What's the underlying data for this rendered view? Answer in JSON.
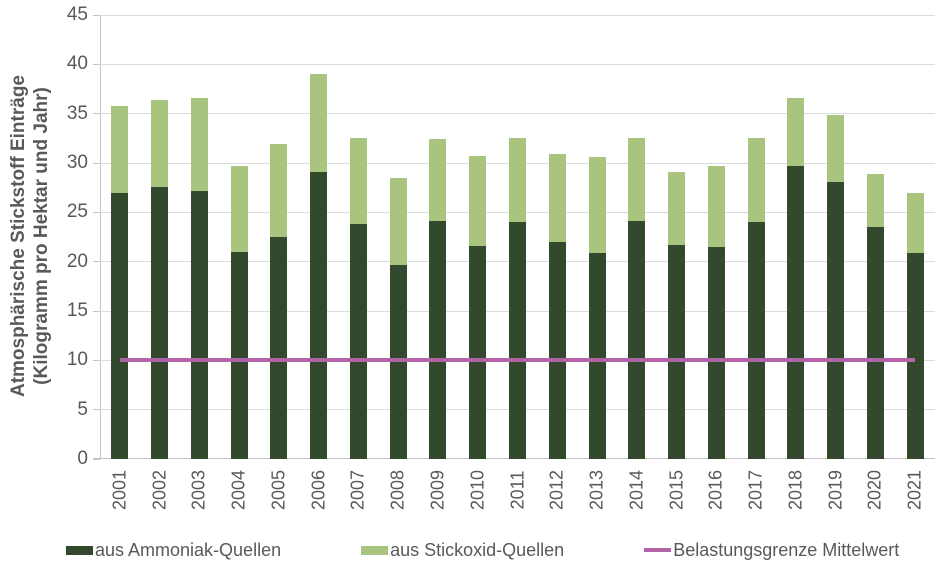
{
  "chart_data": {
    "type": "bar",
    "stacked": true,
    "categories": [
      2001,
      2002,
      2003,
      2004,
      2005,
      2006,
      2007,
      2008,
      2009,
      2010,
      2011,
      2012,
      2013,
      2014,
      2015,
      2016,
      2017,
      2018,
      2019,
      2020,
      2021
    ],
    "series": [
      {
        "name": "aus Ammoniak-Quellen",
        "color": "#33492d",
        "values": [
          27.0,
          27.6,
          27.2,
          21.0,
          22.5,
          29.1,
          23.8,
          19.7,
          24.1,
          21.6,
          24.0,
          22.0,
          20.9,
          24.1,
          21.7,
          21.5,
          24.0,
          29.7,
          28.1,
          23.5,
          20.9
        ]
      },
      {
        "name": "aus Stickoxid-Quellen",
        "color": "#a9c47e",
        "values": [
          8.8,
          8.8,
          9.4,
          8.7,
          9.4,
          9.9,
          8.7,
          8.8,
          8.3,
          9.1,
          8.5,
          8.9,
          9.7,
          8.4,
          7.4,
          8.2,
          8.5,
          6.9,
          6.8,
          5.4,
          6.1
        ]
      }
    ],
    "stack_totals": [
      35.8,
      36.4,
      36.6,
      29.7,
      31.9,
      39.0,
      32.5,
      28.5,
      32.4,
      30.7,
      32.5,
      30.9,
      30.6,
      32.5,
      29.1,
      29.7,
      32.5,
      36.6,
      34.9,
      28.9,
      27.0
    ],
    "reference_line": {
      "name": "Belastungsgrenze Mittelwert",
      "value": 10,
      "color": "#b164a8"
    },
    "ylabel_line1": "Atmosphärische Stickstoff Einträge",
    "ylabel_line2": "(Kilogramm  pro Hektar und Jahr)",
    "xlabel": "",
    "title": "",
    "ylim": [
      0,
      45
    ],
    "yticks": [
      0,
      5,
      10,
      15,
      20,
      25,
      30,
      35,
      40,
      45
    ],
    "grid": true,
    "legend_position": "bottom"
  },
  "colors": {
    "background": "#ffffff",
    "grid": "#dbdbdb",
    "axis": "#c4c4c4",
    "text": "#595959",
    "bar_dark": "#33492d",
    "bar_light": "#a9c47e",
    "line": "#b164a8"
  }
}
